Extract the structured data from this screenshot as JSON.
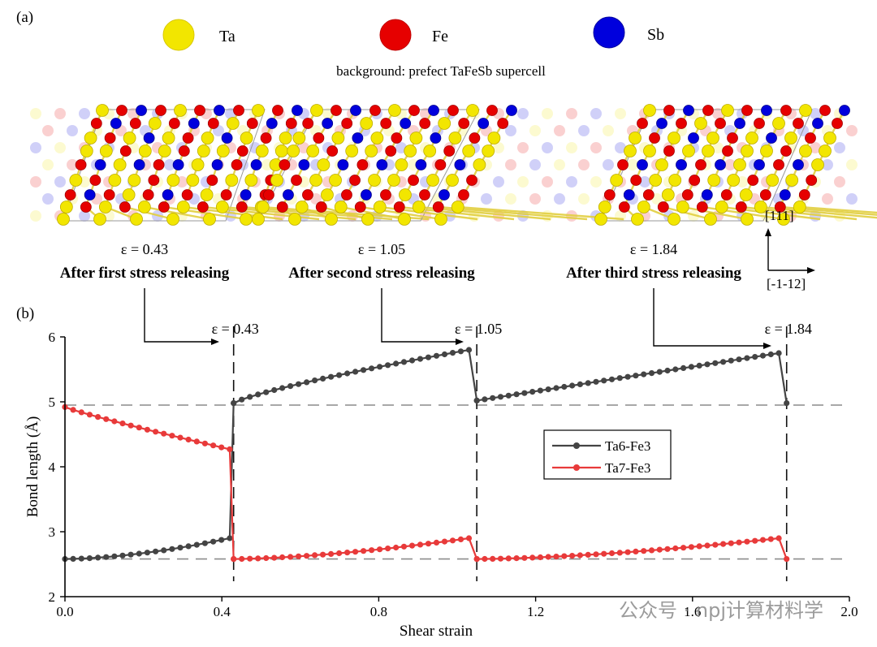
{
  "panel_a": {
    "label": "(a)",
    "legend": [
      {
        "name": "Ta",
        "color": "#f2e600"
      },
      {
        "name": "Fe",
        "color": "#e60000"
      },
      {
        "name": "Sb",
        "color": "#0000dd"
      }
    ],
    "background_note": "background: prefect TaFeSb supercell",
    "snapshots": [
      {
        "strain": "ε = 0.43",
        "caption": "After first stress releasing"
      },
      {
        "strain": "ε = 1.05",
        "caption": "After second stress releasing"
      },
      {
        "strain": "ε = 1.84",
        "caption": "After third stress releasing"
      }
    ],
    "axes": {
      "vertical": "[111]",
      "horizontal": "[-1-12]"
    }
  },
  "panel_b": {
    "label": "(b)"
  },
  "watermark": {
    "text": "公众号 · npj计算材料学"
  },
  "chart_data": {
    "type": "line",
    "xlabel": "Shear strain",
    "ylabel": "Bond length (Å)",
    "xlim": [
      0,
      2.0
    ],
    "ylim": [
      2,
      6
    ],
    "xticks": [
      "0.0",
      "0.4",
      "0.8",
      "1.2",
      "1.6",
      "2.0"
    ],
    "yticks": [
      "2",
      "3",
      "4",
      "5",
      "6"
    ],
    "legend_position": "center-right",
    "grid": false,
    "reference_lines_y": [
      4.95,
      2.58
    ],
    "annotations": [
      {
        "x": 0.43,
        "label": "ε = 0.43"
      },
      {
        "x": 1.05,
        "label": "ε = 1.05"
      },
      {
        "x": 1.84,
        "label": "ε = 1.84"
      }
    ],
    "series": [
      {
        "name": "Ta6-Fe3",
        "color": "#444444",
        "segments": [
          {
            "x_start": 0.0,
            "x_end": 0.42,
            "y_start": 2.58,
            "y_end": 2.9,
            "curve": 1.7
          },
          {
            "x_start": 0.43,
            "x_end": 1.03,
            "y_start": 4.98,
            "y_end": 5.8,
            "curve": 0.8
          },
          {
            "x_start": 1.05,
            "x_end": 1.82,
            "y_start": 5.02,
            "y_end": 5.75,
            "curve": 1.0
          }
        ],
        "drops": [
          {
            "x": 0.43,
            "from": 2.9,
            "to": 4.98
          },
          {
            "x": 1.05,
            "from": 5.8,
            "to": 5.02
          },
          {
            "x": 1.84,
            "from": 5.75,
            "to": 4.98
          }
        ]
      },
      {
        "name": "Ta7-Fe3",
        "color": "#e83a3a",
        "segments": [
          {
            "x_start": 0.0,
            "x_end": 0.42,
            "y_start": 4.92,
            "y_end": 4.27,
            "curve": 0.9
          },
          {
            "x_start": 0.43,
            "x_end": 1.03,
            "y_start": 2.58,
            "y_end": 2.9,
            "curve": 1.6
          },
          {
            "x_start": 1.05,
            "x_end": 1.82,
            "y_start": 2.58,
            "y_end": 2.9,
            "curve": 1.6
          }
        ],
        "drops": [
          {
            "x": 0.43,
            "from": 4.27,
            "to": 2.58
          },
          {
            "x": 1.05,
            "from": 2.9,
            "to": 2.58
          },
          {
            "x": 1.84,
            "from": 2.9,
            "to": 2.58
          }
        ]
      }
    ]
  }
}
